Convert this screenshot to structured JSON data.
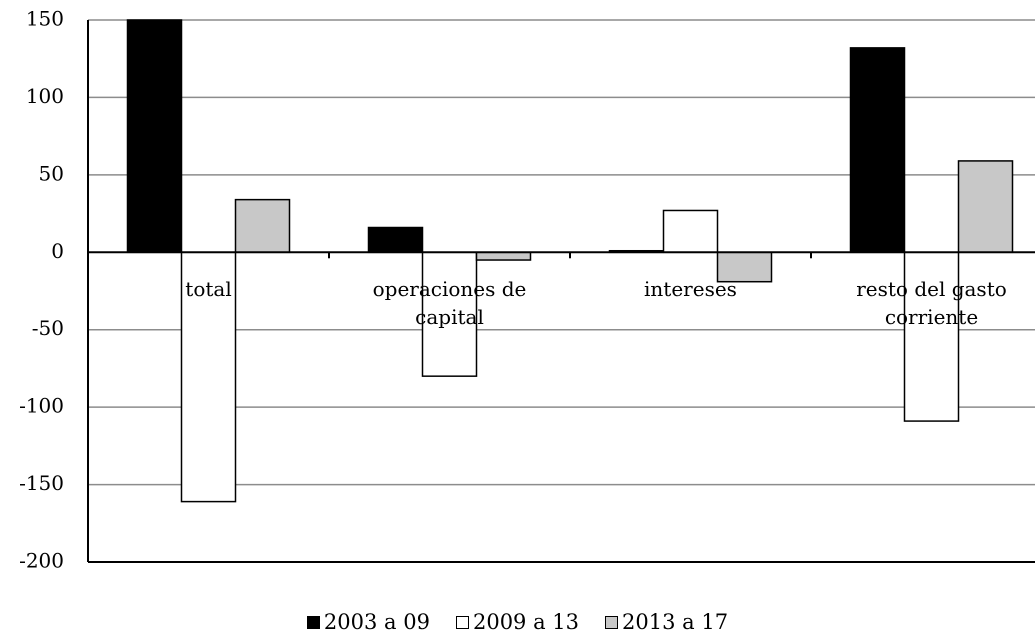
{
  "chart_data": {
    "type": "bar",
    "categories": [
      "total",
      "operaciones de capital",
      "intereses",
      "resto del gasto corriente"
    ],
    "series": [
      {
        "name": "2003 a 09",
        "color": "#000000",
        "values": [
          150,
          16,
          1,
          132
        ]
      },
      {
        "name": "2009 a 13",
        "color": "#ffffff",
        "values": [
          -161,
          -80,
          27,
          -109
        ]
      },
      {
        "name": "2013 a 17",
        "color": "#c8c8c8",
        "values": [
          34,
          -5,
          -19,
          59
        ]
      }
    ],
    "ylim": [
      -200,
      150
    ],
    "yticks": [
      -200,
      -150,
      -100,
      -50,
      0,
      50,
      100,
      150
    ],
    "grid": true,
    "legend": "bottom"
  }
}
